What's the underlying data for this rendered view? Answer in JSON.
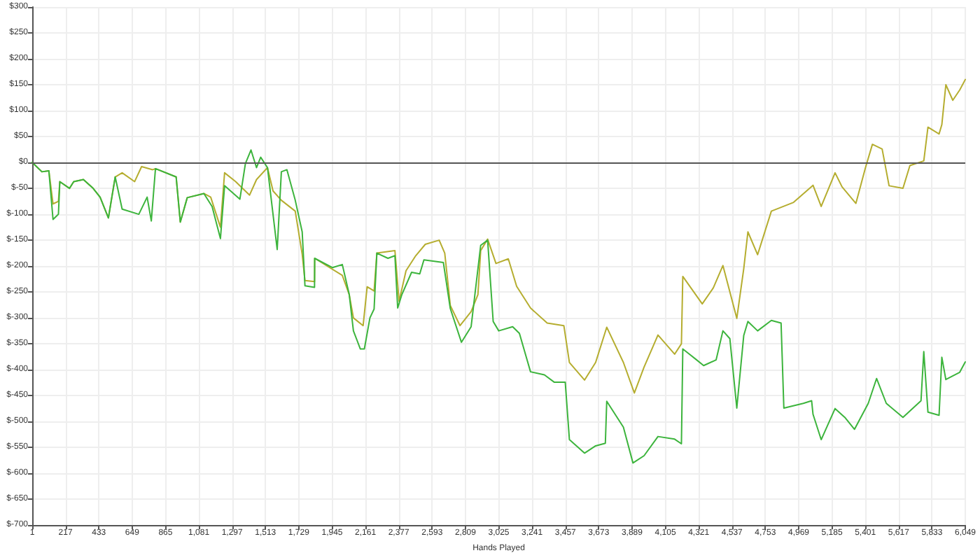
{
  "chart_data": {
    "type": "line",
    "xlabel": "Hands Played",
    "marker": "none",
    "grid": true,
    "xlim": [
      1,
      6049
    ],
    "xticks": [
      {
        "value": 1,
        "label": "1"
      },
      {
        "value": 217,
        "label": "217"
      },
      {
        "value": 433,
        "label": "433"
      },
      {
        "value": 649,
        "label": "649"
      },
      {
        "value": 865,
        "label": "865"
      },
      {
        "value": 1081,
        "label": "1,081"
      },
      {
        "value": 1297,
        "label": "1,297"
      },
      {
        "value": 1513,
        "label": "1,513"
      },
      {
        "value": 1729,
        "label": "1,729"
      },
      {
        "value": 1945,
        "label": "1,945"
      },
      {
        "value": 2161,
        "label": "2,161"
      },
      {
        "value": 2377,
        "label": "2,377"
      },
      {
        "value": 2593,
        "label": "2,593"
      },
      {
        "value": 2809,
        "label": "2,809"
      },
      {
        "value": 3025,
        "label": "3,025"
      },
      {
        "value": 3241,
        "label": "3,241"
      },
      {
        "value": 3457,
        "label": "3,457"
      },
      {
        "value": 3673,
        "label": "3,673"
      },
      {
        "value": 3889,
        "label": "3,889"
      },
      {
        "value": 4105,
        "label": "4,105"
      },
      {
        "value": 4321,
        "label": "4,321"
      },
      {
        "value": 4537,
        "label": "4,537"
      },
      {
        "value": 4753,
        "label": "4,753"
      },
      {
        "value": 4969,
        "label": "4,969"
      },
      {
        "value": 5185,
        "label": "5,185"
      },
      {
        "value": 5401,
        "label": "5,401"
      },
      {
        "value": 5617,
        "label": "5,617"
      },
      {
        "value": 5833,
        "label": "5,833"
      },
      {
        "value": 6049,
        "label": "6,049"
      }
    ],
    "ylim": [
      -700,
      300
    ],
    "yticks": [
      {
        "value": -700,
        "label": "$-700"
      },
      {
        "value": -650,
        "label": "$-650"
      },
      {
        "value": -600,
        "label": "$-600"
      },
      {
        "value": -550,
        "label": "$-550"
      },
      {
        "value": -500,
        "label": "$-500"
      },
      {
        "value": -450,
        "label": "$-450"
      },
      {
        "value": -400,
        "label": "$-400"
      },
      {
        "value": -350,
        "label": "$-350"
      },
      {
        "value": -300,
        "label": "$-300"
      },
      {
        "value": -250,
        "label": "$-250"
      },
      {
        "value": -200,
        "label": "$-200"
      },
      {
        "value": -150,
        "label": "$-150"
      },
      {
        "value": -100,
        "label": "$-100"
      },
      {
        "value": -50,
        "label": "$-50"
      },
      {
        "value": 0,
        "label": "$0"
      },
      {
        "value": 50,
        "label": "$50"
      },
      {
        "value": 100,
        "label": "$100"
      },
      {
        "value": 150,
        "label": "$150"
      },
      {
        "value": 200,
        "label": "$200"
      },
      {
        "value": 250,
        "label": "$250"
      },
      {
        "value": 300,
        "label": "$300"
      }
    ],
    "ref_lines": [
      {
        "axis": "y",
        "value": 0,
        "color": "#555555"
      }
    ],
    "series": [
      {
        "color": "#b5ad2f",
        "x": [
          1,
          64,
          109,
          136,
          171,
          180,
          243,
          270,
          333,
          396,
          441,
          495,
          539,
          584,
          665,
          710,
          782,
          800,
          934,
          961,
          1006,
          1114,
          1158,
          1221,
          1248,
          1320,
          1410,
          1455,
          1526,
          1562,
          1616,
          1706,
          1751,
          1769,
          1831,
          1832,
          2011,
          2056,
          2083,
          2146,
          2172,
          2217,
          2235,
          2352,
          2379,
          2424,
          2487,
          2549,
          2639,
          2675,
          2711,
          2774,
          2846,
          2890,
          2908,
          2953,
          3007,
          3087,
          3141,
          3231,
          3339,
          3447,
          3483,
          3581,
          3653,
          3725,
          3833,
          3904,
          3967,
          4057,
          4165,
          4209,
          4218,
          4344,
          4416,
          4478,
          4568,
          4613,
          4640,
          4703,
          4792,
          4936,
          5062,
          5115,
          5205,
          5250,
          5340,
          5402,
          5447,
          5510,
          5555,
          5645,
          5690,
          5780,
          5807,
          5879,
          5897,
          5923,
          5968,
          6013,
          6049
        ],
        "values": [
          0,
          -18,
          -16,
          -80,
          -75,
          -37,
          -50,
          -37,
          -33,
          -50,
          -67,
          -107,
          -28,
          -20,
          -37,
          -8,
          -14,
          -12,
          -28,
          -115,
          -68,
          -60,
          -67,
          -125,
          -20,
          -37,
          -63,
          -33,
          -10,
          -55,
          -73,
          -94,
          -177,
          -228,
          -230,
          -185,
          -218,
          -255,
          -300,
          -315,
          -240,
          -248,
          -175,
          -170,
          -268,
          -209,
          -180,
          -158,
          -150,
          -175,
          -276,
          -315,
          -288,
          -255,
          -170,
          -148,
          -195,
          -186,
          -239,
          -281,
          -310,
          -315,
          -386,
          -420,
          -386,
          -318,
          -386,
          -445,
          -395,
          -333,
          -370,
          -350,
          -220,
          -273,
          -242,
          -199,
          -301,
          -205,
          -134,
          -178,
          -94,
          -77,
          -44,
          -85,
          -20,
          -47,
          -79,
          -10,
          35,
          26,
          -45,
          -50,
          -6,
          3,
          68,
          55,
          73,
          150,
          120,
          140,
          160
        ]
      },
      {
        "color": "#3cb43c",
        "x": [
          1,
          64,
          109,
          136,
          171,
          180,
          243,
          270,
          333,
          396,
          441,
          495,
          539,
          584,
          692,
          746,
          773,
          800,
          934,
          961,
          1006,
          1114,
          1167,
          1221,
          1248,
          1347,
          1383,
          1419,
          1455,
          1482,
          1526,
          1589,
          1616,
          1652,
          1706,
          1751,
          1769,
          1831,
          1832,
          1948,
          2011,
          2056,
          2083,
          2128,
          2154,
          2190,
          2217,
          2235,
          2307,
          2352,
          2370,
          2397,
          2460,
          2513,
          2540,
          2666,
          2711,
          2783,
          2846,
          2908,
          2953,
          2989,
          3025,
          3115,
          3159,
          3231,
          3321,
          3384,
          3456,
          3483,
          3581,
          3653,
          3716,
          3725,
          3833,
          3895,
          3967,
          4057,
          4165,
          4209,
          4218,
          4299,
          4353,
          4434,
          4478,
          4523,
          4568,
          4613,
          4640,
          4703,
          4792,
          4855,
          4873,
          4999,
          5053,
          5062,
          5115,
          5205,
          5268,
          5331,
          5420,
          5474,
          5537,
          5645,
          5762,
          5780,
          5807,
          5879,
          5897,
          5923,
          6013,
          6049
        ],
        "values": [
          0,
          -18,
          -16,
          -110,
          -100,
          -37,
          -50,
          -37,
          -33,
          -50,
          -67,
          -107,
          -28,
          -90,
          -100,
          -67,
          -113,
          -12,
          -28,
          -115,
          -68,
          -60,
          -85,
          -147,
          -45,
          -71,
          -2,
          24,
          -10,
          10,
          -10,
          -168,
          -18,
          -14,
          -73,
          -134,
          -238,
          -241,
          -185,
          -203,
          -197,
          -255,
          -325,
          -360,
          -360,
          -300,
          -283,
          -175,
          -185,
          -180,
          -281,
          -255,
          -212,
          -215,
          -188,
          -193,
          -282,
          -347,
          -317,
          -160,
          -150,
          -307,
          -325,
          -317,
          -330,
          -404,
          -410,
          -424,
          -424,
          -535,
          -561,
          -547,
          -542,
          -461,
          -511,
          -580,
          -566,
          -529,
          -534,
          -543,
          -360,
          -379,
          -392,
          -381,
          -325,
          -340,
          -474,
          -334,
          -307,
          -325,
          -305,
          -310,
          -474,
          -465,
          -460,
          -486,
          -535,
          -475,
          -492,
          -515,
          -465,
          -417,
          -465,
          -492,
          -460,
          -365,
          -482,
          -488,
          -376,
          -419,
          -405,
          -385
        ]
      }
    ]
  }
}
